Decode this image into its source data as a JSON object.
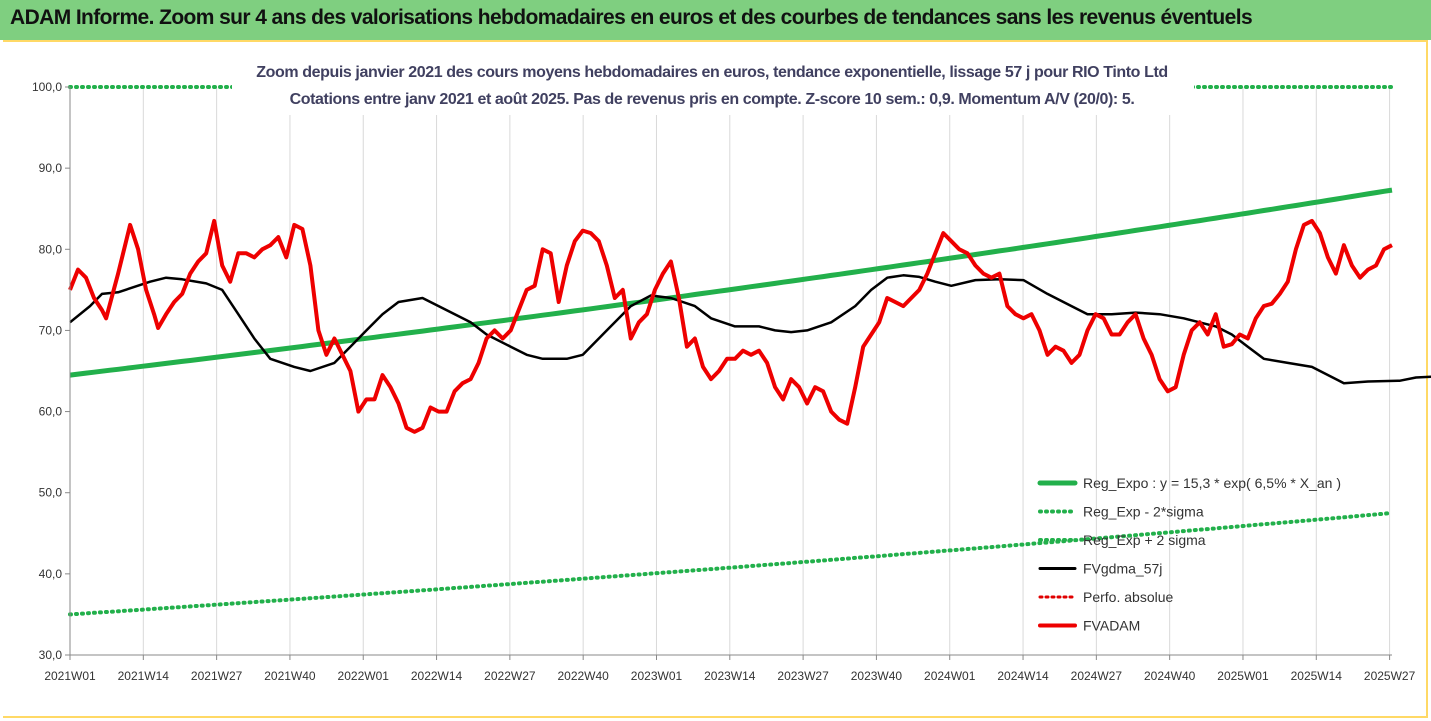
{
  "banner": {
    "title": "ADAM Informe. Zoom sur 4 ans des valorisations hebdomadaires en euros et des courbes de tendances sans les revenus éventuels"
  },
  "colors": {
    "banner_bg": "#7fcf80",
    "frame_border": "#ffd966",
    "reg_expo": "#22b04b",
    "reg_bands": "#22b04b",
    "fvgdma": "#000000",
    "perfo": "#e00000",
    "fvadam": "#ee0000"
  },
  "chart_data": {
    "type": "line",
    "title_line1": "Zoom depuis janvier 2021 des cours moyens hebdomadaires en euros, tendance exponentielle, lissage 57 j pour RIO Tinto Ltd",
    "title_line2": "Cotations entre janv 2021 et août 2025.  Pas de revenus pris en compte. Z-score 10 sem.: 0,9. Momentum A/V (20/0): 5.",
    "ylim": [
      30,
      100
    ],
    "y_ticks": [
      "30,0",
      "40,0",
      "50,0",
      "60,0",
      "70,0",
      "80,0",
      "90,0",
      "100,0"
    ],
    "y_tick_values": [
      30,
      40,
      50,
      60,
      70,
      80,
      90,
      100
    ],
    "x_ticks": [
      "2021W01",
      "2021W14",
      "2021W27",
      "2021W40",
      "2022W01",
      "2022W14",
      "2022W27",
      "2022W40",
      "2023W01",
      "2023W14",
      "2023W27",
      "2023W40",
      "2024W01",
      "2024W14",
      "2024W27",
      "2024W40",
      "2025W01",
      "2025W14",
      "2025W27"
    ],
    "week_count": 240,
    "grid": "vertical",
    "legend_position": "bottom-right",
    "legend": [
      {
        "key": "reg_expo",
        "label": "Reg_Expo : y = 15,3 * exp( 6,5% *  X_an )"
      },
      {
        "key": "reg_minus",
        "label": "Reg_Exp - 2*sigma"
      },
      {
        "key": "reg_plus",
        "label": "Reg_Exp + 2 sigma"
      },
      {
        "key": "fvgdma",
        "label": "FVgdma_57j"
      },
      {
        "key": "perfo",
        "label": "Perfo. absolue"
      },
      {
        "key": "fvadam",
        "label": "FVADAM"
      }
    ],
    "series": [
      {
        "name": "Reg_Expo : y = 15,3 * exp( 6,5% *  X_an )",
        "key": "reg_expo",
        "start": 64.5,
        "end": 87.3
      },
      {
        "name": "Reg_Exp - 2*sigma",
        "key": "reg_minus",
        "start": 35.0,
        "end": 47.5
      },
      {
        "name": "Reg_Exp + 2 sigma",
        "key": "reg_plus",
        "start": 100.0,
        "end": 100.0
      },
      {
        "name": "FVgdma_57j",
        "key": "fvgdma",
        "points": [
          [
            0,
            71
          ],
          [
            5,
            73
          ],
          [
            8,
            74.5
          ],
          [
            12,
            74.7
          ],
          [
            20,
            76
          ],
          [
            24,
            76.5
          ],
          [
            28,
            76.3
          ],
          [
            34,
            75.8
          ],
          [
            38,
            75
          ],
          [
            42,
            72
          ],
          [
            46,
            69
          ],
          [
            50,
            66.5
          ],
          [
            56,
            65.5
          ],
          [
            60,
            65
          ],
          [
            66,
            66
          ],
          [
            70,
            68
          ],
          [
            74,
            70
          ],
          [
            78,
            72
          ],
          [
            82,
            73.5
          ],
          [
            88,
            74
          ],
          [
            92,
            73
          ],
          [
            100,
            71
          ],
          [
            104,
            69.5
          ],
          [
            110,
            68
          ],
          [
            114,
            67
          ],
          [
            118,
            66.5
          ],
          [
            124,
            66.5
          ],
          [
            128,
            67
          ],
          [
            134,
            70
          ],
          [
            140,
            73
          ],
          [
            145,
            74.3
          ],
          [
            150,
            74
          ],
          [
            156,
            73
          ],
          [
            160,
            71.5
          ],
          [
            166,
            70.5
          ],
          [
            172,
            70.5
          ],
          [
            176,
            70
          ],
          [
            180,
            69.8
          ],
          [
            184,
            70
          ],
          [
            190,
            71
          ],
          [
            196,
            73
          ],
          [
            200,
            75
          ],
          [
            204,
            76.5
          ],
          [
            208,
            76.8
          ],
          [
            212,
            76.6
          ],
          [
            216,
            76
          ],
          [
            220,
            75.5
          ],
          [
            226,
            76.2
          ],
          [
            232,
            76.3
          ],
          [
            238,
            76.2
          ],
          [
            244,
            74.5
          ],
          [
            250,
            73
          ],
          [
            254,
            72
          ],
          [
            260,
            72
          ],
          [
            266,
            72.2
          ],
          [
            272,
            72
          ],
          [
            278,
            71.5
          ],
          [
            286,
            70.5
          ],
          [
            290,
            69.5
          ],
          [
            294,
            68
          ],
          [
            298,
            66.5
          ],
          [
            304,
            66
          ],
          [
            310,
            65.5
          ],
          [
            318,
            63.5
          ],
          [
            324,
            63.7
          ],
          [
            332,
            63.8
          ],
          [
            336,
            64.2
          ],
          [
            340,
            64.3
          ]
        ]
      },
      {
        "name": "FVADAM",
        "key": "fvadam",
        "points": [
          [
            0,
            75
          ],
          [
            2,
            77.5
          ],
          [
            4,
            76.5
          ],
          [
            6,
            74
          ],
          [
            8,
            72.5
          ],
          [
            9,
            71.5
          ],
          [
            12,
            77
          ],
          [
            14,
            81
          ],
          [
            15,
            83
          ],
          [
            17,
            80
          ],
          [
            19,
            75
          ],
          [
            21,
            72
          ],
          [
            22,
            70.3
          ],
          [
            24,
            72
          ],
          [
            26,
            73.5
          ],
          [
            28,
            74.5
          ],
          [
            30,
            77
          ],
          [
            32,
            78.5
          ],
          [
            34,
            79.5
          ],
          [
            36,
            83.5
          ],
          [
            38,
            78
          ],
          [
            40,
            76
          ],
          [
            42,
            79.5
          ],
          [
            44,
            79.5
          ],
          [
            46,
            79
          ],
          [
            48,
            80
          ],
          [
            50,
            80.5
          ],
          [
            52,
            81.5
          ],
          [
            54,
            79
          ],
          [
            56,
            83
          ],
          [
            58,
            82.5
          ],
          [
            60,
            78
          ],
          [
            62,
            70
          ],
          [
            64,
            67
          ],
          [
            66,
            69
          ],
          [
            68,
            67
          ],
          [
            70,
            65
          ],
          [
            72,
            60
          ],
          [
            74,
            61.5
          ],
          [
            76,
            61.5
          ],
          [
            78,
            64.5
          ],
          [
            80,
            63
          ],
          [
            82,
            61
          ],
          [
            84,
            58
          ],
          [
            86,
            57.5
          ],
          [
            88,
            58
          ],
          [
            90,
            60.5
          ],
          [
            92,
            60
          ],
          [
            94,
            60
          ],
          [
            96,
            62.5
          ],
          [
            98,
            63.5
          ],
          [
            100,
            64
          ],
          [
            102,
            66
          ],
          [
            104,
            69
          ],
          [
            106,
            70
          ],
          [
            108,
            69
          ],
          [
            110,
            70
          ],
          [
            112,
            72.5
          ],
          [
            114,
            75
          ],
          [
            116,
            75.5
          ],
          [
            118,
            80
          ],
          [
            120,
            79.5
          ],
          [
            122,
            73.5
          ],
          [
            124,
            78
          ],
          [
            126,
            81
          ],
          [
            128,
            82.3
          ],
          [
            130,
            82
          ],
          [
            132,
            81
          ],
          [
            134,
            78
          ],
          [
            136,
            74
          ],
          [
            138,
            75
          ],
          [
            140,
            69
          ],
          [
            142,
            71
          ],
          [
            144,
            72
          ],
          [
            146,
            75
          ],
          [
            148,
            77
          ],
          [
            150,
            78.5
          ],
          [
            152,
            74
          ],
          [
            154,
            68
          ],
          [
            156,
            69
          ],
          [
            158,
            65.5
          ],
          [
            160,
            64
          ],
          [
            162,
            65
          ],
          [
            164,
            66.5
          ],
          [
            166,
            66.5
          ],
          [
            168,
            67.5
          ],
          [
            170,
            67
          ],
          [
            172,
            67.5
          ],
          [
            174,
            66
          ],
          [
            176,
            63
          ],
          [
            178,
            61.5
          ],
          [
            180,
            64
          ],
          [
            182,
            63
          ],
          [
            184,
            61
          ],
          [
            186,
            63
          ],
          [
            188,
            62.5
          ],
          [
            190,
            60
          ],
          [
            192,
            59
          ],
          [
            194,
            58.5
          ],
          [
            196,
            63
          ],
          [
            198,
            68
          ],
          [
            200,
            69.5
          ],
          [
            202,
            71
          ],
          [
            204,
            74
          ],
          [
            206,
            73.5
          ],
          [
            208,
            73
          ],
          [
            210,
            74
          ],
          [
            212,
            75
          ],
          [
            214,
            77
          ],
          [
            216,
            79.5
          ],
          [
            218,
            82
          ],
          [
            220,
            81
          ],
          [
            222,
            80
          ],
          [
            224,
            79.5
          ],
          [
            226,
            78
          ],
          [
            228,
            77
          ],
          [
            230,
            76.5
          ],
          [
            232,
            77
          ],
          [
            234,
            73
          ],
          [
            236,
            72
          ],
          [
            238,
            71.5
          ],
          [
            240,
            72
          ],
          [
            242,
            70
          ],
          [
            244,
            67
          ],
          [
            246,
            68
          ],
          [
            248,
            67.5
          ],
          [
            250,
            66
          ],
          [
            252,
            67
          ],
          [
            254,
            70
          ],
          [
            256,
            72
          ],
          [
            258,
            71.5
          ],
          [
            260,
            69.5
          ],
          [
            262,
            69.5
          ],
          [
            264,
            71
          ],
          [
            266,
            72
          ],
          [
            268,
            69
          ],
          [
            270,
            67
          ],
          [
            272,
            64
          ],
          [
            274,
            62.5
          ],
          [
            276,
            63
          ],
          [
            278,
            67
          ],
          [
            280,
            70
          ],
          [
            282,
            71
          ],
          [
            284,
            69.5
          ],
          [
            286,
            72
          ],
          [
            288,
            68
          ],
          [
            290,
            68.3
          ],
          [
            292,
            69.5
          ],
          [
            294,
            69
          ],
          [
            296,
            71.5
          ],
          [
            298,
            73
          ],
          [
            300,
            73.3
          ],
          [
            302,
            74.5
          ],
          [
            304,
            76
          ],
          [
            306,
            80
          ],
          [
            308,
            83
          ],
          [
            310,
            83.5
          ],
          [
            312,
            82
          ],
          [
            314,
            79
          ],
          [
            316,
            77
          ],
          [
            318,
            80.5
          ],
          [
            320,
            78
          ],
          [
            322,
            76.5
          ],
          [
            324,
            77.5
          ],
          [
            326,
            78
          ],
          [
            328,
            80
          ],
          [
            330,
            80.5
          ]
        ]
      },
      {
        "name": "Perfo. absolue",
        "key": "perfo",
        "points": []
      }
    ]
  }
}
